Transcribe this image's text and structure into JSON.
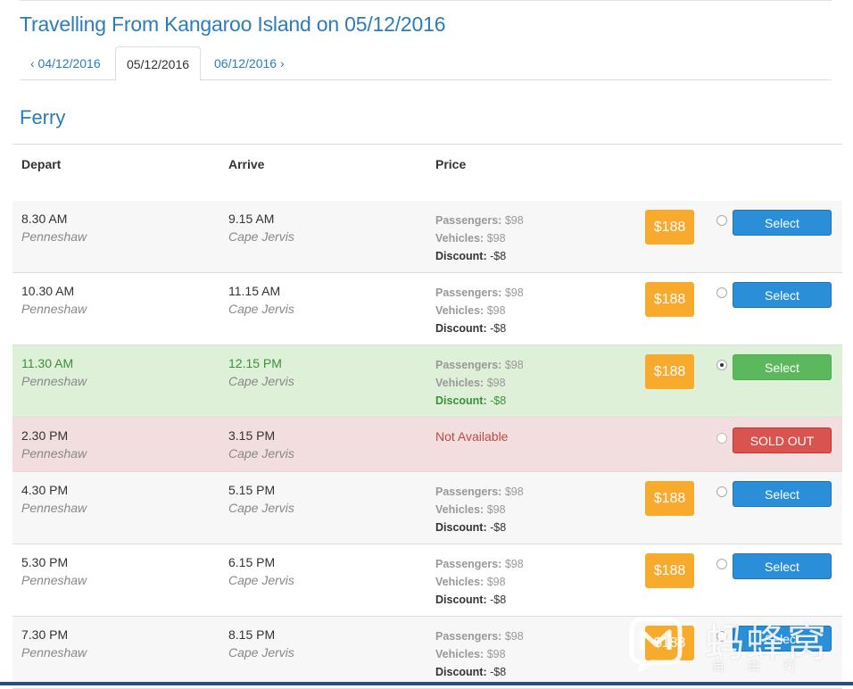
{
  "page": {
    "title": "Travelling From Kangaroo Island on 05/12/2016"
  },
  "date_tabs": {
    "prev": "‹ 04/12/2016",
    "current": "05/12/2016",
    "next": "06/12/2016 ›"
  },
  "section": {
    "title": "Ferry"
  },
  "table": {
    "headers": {
      "depart": "Depart",
      "arrive": "Arrive",
      "price": "Price"
    },
    "price_labels": {
      "passengers": "Passengers:",
      "vehicles": "Vehicles:",
      "discount": "Discount:"
    },
    "rows": [
      {
        "depart_time": "8.30 AM",
        "depart_place": "Penneshaw",
        "arrive_time": "9.15 AM",
        "arrive_place": "Cape Jervis",
        "passengers": "$98",
        "vehicles": "$98",
        "discount": "-$8",
        "total": "$188",
        "button": "Select",
        "status": "available",
        "selected": false
      },
      {
        "depart_time": "10.30 AM",
        "depart_place": "Penneshaw",
        "arrive_time": "11.15 AM",
        "arrive_place": "Cape Jervis",
        "passengers": "$98",
        "vehicles": "$98",
        "discount": "-$8",
        "total": "$188",
        "button": "Select",
        "status": "available",
        "selected": false
      },
      {
        "depart_time": "11.30 AM",
        "depart_place": "Penneshaw",
        "arrive_time": "12.15 PM",
        "arrive_place": "Cape Jervis",
        "passengers": "$98",
        "vehicles": "$98",
        "discount": "-$8",
        "total": "$188",
        "button": "Select",
        "status": "available",
        "selected": true
      },
      {
        "depart_time": "2.30 PM",
        "depart_place": "Penneshaw",
        "arrive_time": "3.15 PM",
        "arrive_place": "Cape Jervis",
        "not_available": "Not Available",
        "button": "SOLD OUT",
        "status": "sold-out",
        "selected": false
      },
      {
        "depart_time": "4.30 PM",
        "depart_place": "Penneshaw",
        "arrive_time": "5.15 PM",
        "arrive_place": "Cape Jervis",
        "passengers": "$98",
        "vehicles": "$98",
        "discount": "-$8",
        "total": "$188",
        "button": "Select",
        "status": "available",
        "selected": false
      },
      {
        "depart_time": "5.30 PM",
        "depart_place": "Penneshaw",
        "arrive_time": "6.15 PM",
        "arrive_place": "Cape Jervis",
        "passengers": "$98",
        "vehicles": "$98",
        "discount": "-$8",
        "total": "$188",
        "button": "Select",
        "status": "available",
        "selected": false
      },
      {
        "depart_time": "7.30 PM",
        "depart_place": "Penneshaw",
        "arrive_time": "8.15 PM",
        "arrive_place": "Cape Jervis",
        "passengers": "$98",
        "vehicles": "$98",
        "discount": "-$8",
        "total": "$188",
        "button": "Select",
        "status": "available",
        "selected": false
      }
    ]
  },
  "watermark": {
    "text": "蚂蜂窝",
    "subtext": "自由行"
  },
  "colors": {
    "accent": "#2a7dbb",
    "price_badge": "#f7aa2c",
    "select_button": "#2a8fd8",
    "selected_button": "#5cb85c",
    "sold_out_button": "#d9534f",
    "selected_row": "#dff0d8",
    "sold_out_row": "#f2dede"
  }
}
